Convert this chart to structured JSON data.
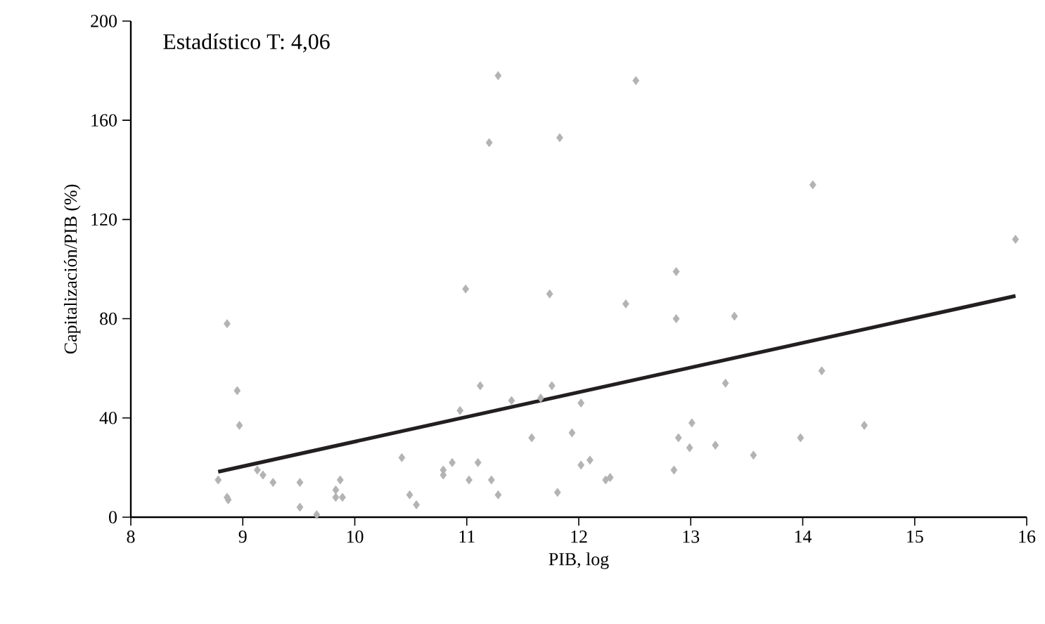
{
  "chart_data": {
    "type": "scatter",
    "xlabel": "PIB, log",
    "ylabel": "Capitalización/PIB (%)",
    "annotations": [
      "Estadístico T: 4,06"
    ],
    "xlim": [
      8,
      16
    ],
    "xticks": [
      8,
      9,
      10,
      11,
      12,
      13,
      14,
      15,
      16
    ],
    "ylim": [
      0,
      200
    ],
    "yticks": [
      0,
      40,
      80,
      120,
      160,
      200
    ],
    "grid": false,
    "series": [
      {
        "marker": "diamond",
        "color": "#b3b3b3",
        "x": [
          11.28,
          11.2,
          11.83,
          10.99,
          11.74,
          8.86,
          8.95,
          8.97,
          8.78,
          8.86,
          8.87,
          9.13,
          9.18,
          9.27,
          9.51,
          9.51,
          9.66,
          9.83,
          9.87,
          9.83,
          9.89,
          10.42,
          10.49,
          10.55,
          10.79,
          10.79,
          10.87,
          10.94,
          11.02,
          11.1,
          11.12,
          11.22,
          11.28,
          11.4,
          11.58,
          11.66,
          11.76,
          11.81,
          11.94,
          12.51,
          14.09,
          15.9,
          12.87,
          12.42,
          12.87,
          13.39,
          14.17,
          13.31,
          12.02,
          13.01,
          12.89,
          12.99,
          13.22,
          13.56,
          13.98,
          14.55,
          12.02,
          12.1,
          12.24,
          12.28,
          12.85
        ],
        "values": [
          178,
          151,
          153,
          92,
          90,
          78,
          51,
          37,
          15,
          8,
          7,
          19,
          17,
          14,
          14,
          4,
          1,
          11,
          15,
          8,
          8,
          24,
          9,
          5,
          19,
          17,
          22,
          43,
          15,
          22,
          53,
          15,
          9,
          47,
          32,
          48,
          53,
          10,
          34,
          176,
          134,
          112,
          99,
          86,
          80,
          81,
          59,
          54,
          46,
          38,
          32,
          28,
          29,
          25,
          32,
          37,
          21,
          23,
          15,
          16,
          19
        ]
      },
      {
        "type": "line",
        "color": "#231f20",
        "x": [
          8.78,
          15.9
        ],
        "values": [
          18.3,
          89.2
        ]
      }
    ]
  }
}
